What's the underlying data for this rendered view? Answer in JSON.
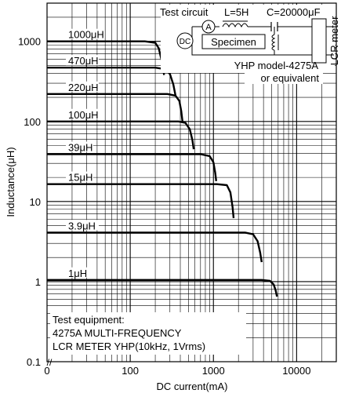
{
  "chart_data": {
    "type": "line",
    "title": "",
    "xlabel": "DC current(mA)",
    "ylabel": "Inductance(μH)",
    "x_scale": "log",
    "y_scale": "log",
    "xlim": [
      10,
      30000
    ],
    "ylim": [
      0.1,
      3000
    ],
    "grid": true,
    "x_ticks": [
      "0",
      "100",
      "1000",
      "10000"
    ],
    "y_ticks": [
      "0.1",
      "1",
      "10",
      "100",
      "1000"
    ],
    "x_axis_break_mark": "//",
    "series": [
      {
        "name": "1000μH",
        "x": [
          10,
          150,
          200,
          220,
          240,
          255
        ],
        "y": [
          1000,
          1000,
          960,
          820,
          560,
          380
        ]
      },
      {
        "name": "470μH",
        "x": [
          10,
          200,
          260,
          300,
          330,
          350
        ],
        "y": [
          470,
          470,
          450,
          390,
          290,
          210
        ]
      },
      {
        "name": "220μH",
        "x": [
          10,
          280,
          350,
          390,
          410,
          425
        ],
        "y": [
          220,
          220,
          210,
          180,
          135,
          100
        ]
      },
      {
        "name": "100μH",
        "x": [
          10,
          380,
          460,
          520,
          560,
          580
        ],
        "y": [
          100,
          100,
          96,
          80,
          58,
          45
        ]
      },
      {
        "name": "39μH",
        "x": [
          10,
          700,
          900,
          1000,
          1050,
          1080
        ],
        "y": [
          39,
          39,
          37,
          31,
          23,
          18
        ]
      },
      {
        "name": "15μH",
        "x": [
          10,
          1100,
          1450,
          1600,
          1700,
          1750
        ],
        "y": [
          16.5,
          16.5,
          16,
          13,
          8.5,
          6.2
        ]
      },
      {
        "name": "3.9μH",
        "x": [
          10,
          2400,
          3000,
          3400,
          3650,
          3800
        ],
        "y": [
          4.1,
          4.1,
          3.9,
          3.2,
          2.3,
          1.75
        ]
      },
      {
        "name": "1μH",
        "x": [
          10,
          3800,
          4800,
          5300,
          5600,
          5800
        ],
        "y": [
          1.05,
          1.05,
          1.02,
          0.92,
          0.78,
          0.65
        ]
      }
    ],
    "annotations": [
      "Test circuit",
      "L=5H",
      "C=20000μF",
      "Specimen",
      "LCR meter",
      "YHP model-4275A",
      "or equivalent",
      "Test equipment:",
      "4275A MULTI-FREQUENCY",
      "LCR METER YHP(10kHz, 1Vrms)"
    ],
    "circuit_symbols": [
      "A",
      "DC"
    ]
  }
}
